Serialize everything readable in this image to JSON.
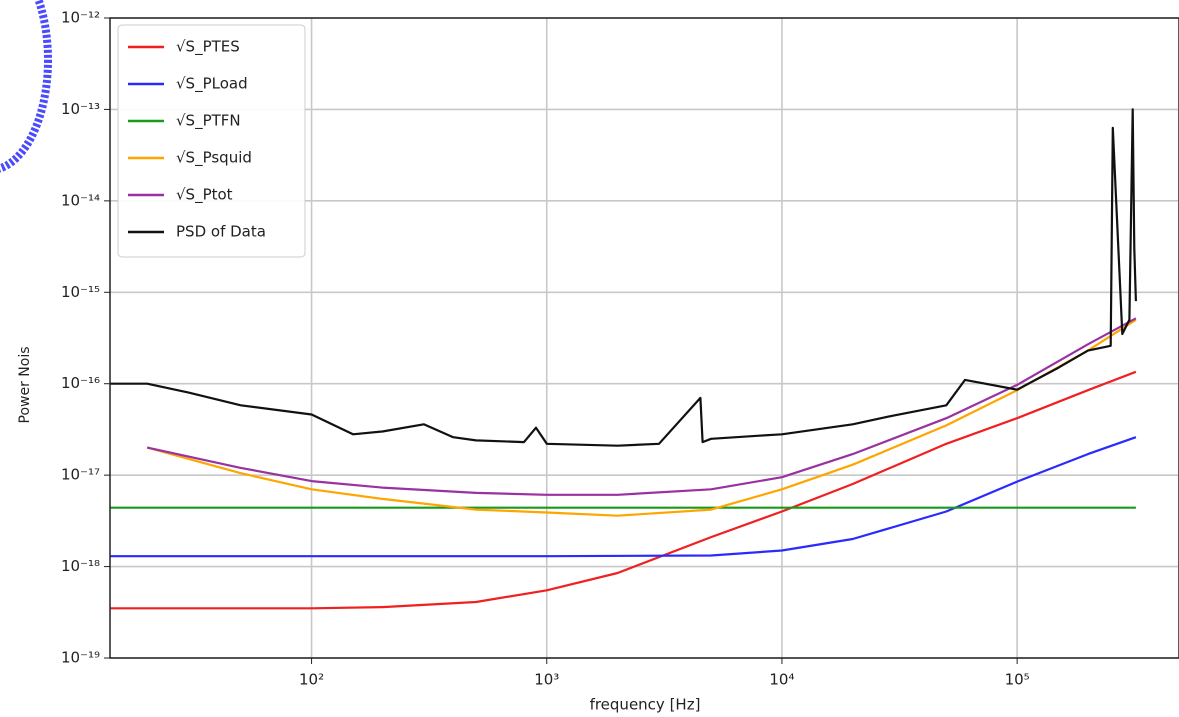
{
  "chart_data": {
    "type": "line",
    "xlabel": "frequency [Hz]",
    "ylabel": "Power Nois",
    "xlog": true,
    "ylog": true,
    "grid": true,
    "legend": "upper left",
    "xlim": [
      13.9,
      483000
    ],
    "ylim": [
      1e-19,
      1e-12
    ],
    "xticks": [
      {
        "value": 100,
        "label": "10²"
      },
      {
        "value": 1000,
        "label": "10³"
      },
      {
        "value": 10000,
        "label": "10⁴"
      },
      {
        "value": 100000,
        "label": "10⁵"
      }
    ],
    "yticks": [
      {
        "value": 1e-19,
        "label": "10⁻¹⁹"
      },
      {
        "value": 1e-18,
        "label": "10⁻¹⁸"
      },
      {
        "value": 1e-17,
        "label": "10⁻¹⁷"
      },
      {
        "value": 1e-16,
        "label": "10⁻¹⁶"
      },
      {
        "value": 1e-15,
        "label": "10⁻¹⁵"
      },
      {
        "value": 1e-14,
        "label": "10⁻¹⁴"
      },
      {
        "value": 1e-13,
        "label": "10⁻¹³"
      },
      {
        "value": 1e-12,
        "label": "10⁻¹²"
      }
    ],
    "series": [
      {
        "name": "√S_PTES",
        "color": "#f02020",
        "x": [
          13.9,
          50,
          100,
          200,
          500,
          1000,
          2000,
          5000,
          10000,
          20000,
          50000,
          100000,
          200000,
          320000
        ],
        "values": [
          3.5e-19,
          3.5e-19,
          3.5e-19,
          3.6e-19,
          4.1e-19,
          5.5e-19,
          8.5e-19,
          2.1e-18,
          4e-18,
          8e-18,
          2.2e-17,
          4.2e-17,
          8.5e-17,
          1.35e-16
        ]
      },
      {
        "name": "√S_PLoad",
        "color": "#2a2aff",
        "x": [
          13.9,
          100,
          1000,
          5000,
          10000,
          20000,
          50000,
          100000,
          200000,
          320000
        ],
        "values": [
          1.3e-18,
          1.3e-18,
          1.3e-18,
          1.32e-18,
          1.5e-18,
          2e-18,
          4e-18,
          8.5e-18,
          1.7e-17,
          2.6e-17
        ]
      },
      {
        "name": "√S_PTFN",
        "color": "#1a9a1a",
        "x": [
          13.9,
          320000
        ],
        "values": [
          4.4e-18,
          4.4e-18
        ]
      },
      {
        "name": "√S_Psquid",
        "color": "#ffa500",
        "x": [
          20,
          50,
          100,
          200,
          500,
          1000,
          2000,
          5000,
          10000,
          20000,
          50000,
          100000,
          200000,
          320000
        ],
        "values": [
          2e-17,
          1.05e-17,
          7e-18,
          5.5e-18,
          4.2e-18,
          3.9e-18,
          3.6e-18,
          4.2e-18,
          7e-18,
          1.3e-17,
          3.5e-17,
          8.5e-17,
          2.3e-16,
          5e-16
        ]
      },
      {
        "name": "√S_Ptot",
        "color": "#9932a0",
        "x": [
          20,
          50,
          100,
          200,
          500,
          1000,
          2000,
          5000,
          10000,
          20000,
          50000,
          100000,
          200000,
          320000
        ],
        "values": [
          2e-17,
          1.2e-17,
          8.6e-18,
          7.3e-18,
          6.4e-18,
          6.1e-18,
          6.1e-18,
          7e-18,
          9.5e-18,
          1.7e-17,
          4.2e-17,
          9.7e-17,
          2.7e-16,
          5.2e-16
        ]
      },
      {
        "name": "PSD of Data",
        "color": "#111111",
        "x": [
          13.9,
          20,
          30,
          50,
          100,
          150,
          200,
          300,
          400,
          500,
          800,
          900,
          1000,
          2000,
          3000,
          4500,
          4600,
          5000,
          8000,
          10000,
          20000,
          30000,
          50000,
          60000,
          100000,
          150000,
          200000,
          250000,
          255000,
          280000,
          300000,
          310000,
          315000,
          320000
        ],
        "values": [
          1e-16,
          1e-16,
          8e-17,
          5.8e-17,
          4.6e-17,
          2.8e-17,
          3e-17,
          3.6e-17,
          2.6e-17,
          2.4e-17,
          2.3e-17,
          3.3e-17,
          2.2e-17,
          2.1e-17,
          2.2e-17,
          7e-17,
          2.3e-17,
          2.5e-17,
          2.7e-17,
          2.8e-17,
          3.6e-17,
          4.5e-17,
          5.8e-17,
          1.1e-16,
          8.6e-17,
          1.5e-16,
          2.3e-16,
          2.6e-16,
          6.3e-14,
          3.5e-16,
          5e-16,
          1e-13,
          3e-15,
          8e-16
        ]
      }
    ]
  }
}
